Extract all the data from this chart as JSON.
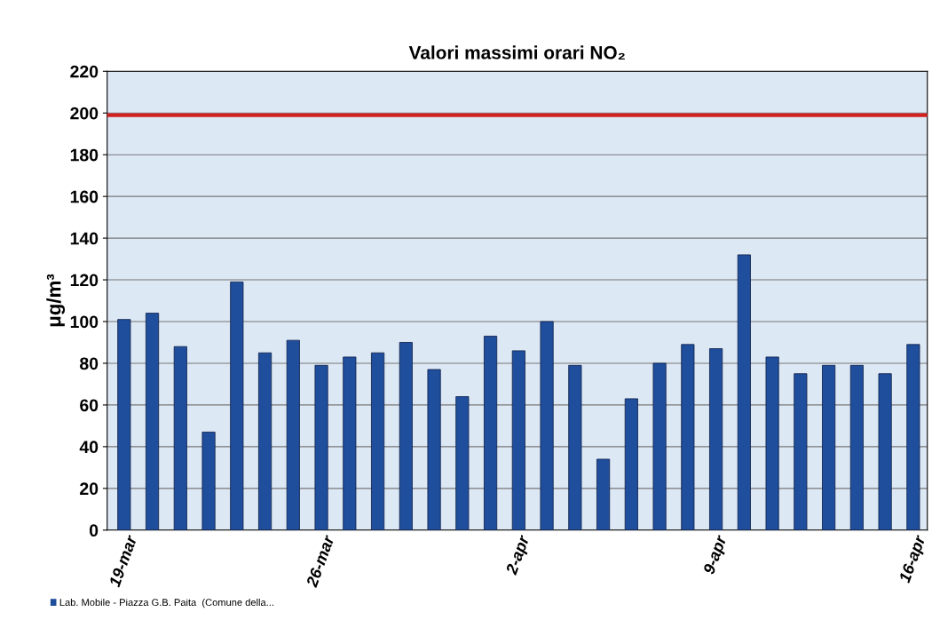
{
  "chart_data": {
    "type": "bar",
    "title": "Valori massimi orari NO₂",
    "ylabel": "μg/m³",
    "categories": [
      "19-mar",
      null,
      null,
      null,
      null,
      null,
      null,
      "26-mar",
      null,
      null,
      null,
      null,
      null,
      null,
      "2-apr",
      null,
      null,
      null,
      null,
      null,
      null,
      "9-apr",
      null,
      null,
      null,
      null,
      null,
      null,
      "16-apr"
    ],
    "series": [
      {
        "name": "Lab. Mobile - Piazza G.B. Paita  (Comune della...",
        "color": "#1f4e9c",
        "values": [
          101,
          104,
          88,
          47,
          119,
          85,
          91,
          79,
          83,
          85,
          90,
          77,
          64,
          93,
          86,
          100,
          79,
          34,
          63,
          80,
          89,
          87,
          132,
          83,
          75,
          79,
          79,
          75,
          89
        ]
      }
    ],
    "ylim": [
      0,
      220
    ],
    "yticks": [
      0,
      20,
      40,
      60,
      80,
      100,
      120,
      140,
      160,
      180,
      200,
      220
    ],
    "grid": "y",
    "legend": "bottom left",
    "ref_lines": [
      {
        "axis": "y",
        "value": 199,
        "color": "#d02020"
      }
    ]
  }
}
